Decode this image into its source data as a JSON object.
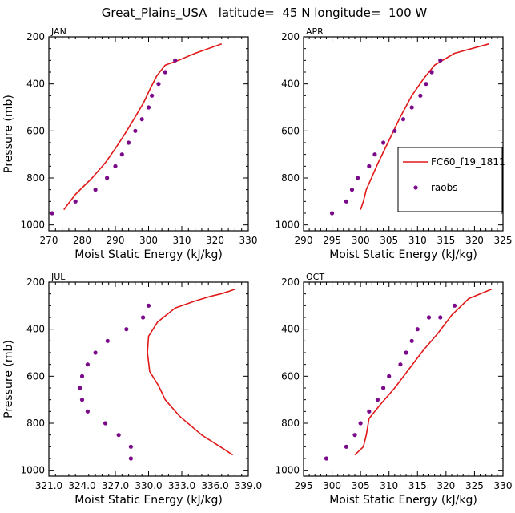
{
  "figure_title": "Great_Plains_USA   latitude=  45 N longitude=  100 W",
  "colors": {
    "model": "#e01818",
    "obs": "#7a0a8a",
    "axis": "#000000"
  },
  "legend": {
    "model_label": "FC60_f19_1811",
    "obs_label": "raobs"
  },
  "chart_data": [
    {
      "type": "line",
      "panel": "JAN",
      "xlabel": "Moist Static Energy (kJ/kg)",
      "ylabel": "Pressure (mb)",
      "xlim": [
        270,
        330
      ],
      "ylim": [
        1025,
        200
      ],
      "xticks": [
        270,
        280,
        290,
        300,
        310,
        320,
        330
      ],
      "xtick_labels": [
        "270",
        "280",
        "290",
        "300",
        "310",
        "320",
        "330"
      ],
      "yticks": [
        200,
        400,
        600,
        800,
        1000
      ],
      "ytick_labels": [
        "200",
        "400",
        "600",
        "800",
        "1000"
      ],
      "series": [
        {
          "name": "FC60_f19_1811",
          "kind": "line",
          "x": [
            274.5,
            278,
            283,
            287,
            290,
            293,
            296,
            298.5,
            300.5,
            302.5,
            305,
            307,
            309,
            314,
            322
          ],
          "y": [
            935,
            870,
            800,
            735,
            675,
            610,
            540,
            480,
            420,
            365,
            320,
            310,
            300,
            270,
            230
          ]
        },
        {
          "name": "raobs",
          "kind": "scatter",
          "x": [
            271,
            278,
            284,
            287.5,
            290,
            292,
            294,
            296,
            298,
            300,
            301,
            303,
            305,
            308
          ],
          "y": [
            950,
            900,
            850,
            800,
            750,
            700,
            650,
            600,
            550,
            500,
            450,
            400,
            350,
            300
          ]
        }
      ]
    },
    {
      "type": "line",
      "panel": "APR",
      "xlabel": "Moist Static Energy (kJ/kg)",
      "ylabel": "Pressure (mb)",
      "xlim": [
        290,
        325
      ],
      "ylim": [
        1025,
        200
      ],
      "xticks": [
        290,
        295,
        300,
        305,
        310,
        315,
        320,
        325
      ],
      "xtick_labels": [
        "290",
        "295",
        "300",
        "305",
        "310",
        "315",
        "320",
        "325"
      ],
      "yticks": [
        200,
        400,
        600,
        800,
        1000
      ],
      "ytick_labels": [
        "200",
        "400",
        "600",
        "800",
        "1000"
      ],
      "series": [
        {
          "name": "FC60_f19_1811",
          "kind": "line",
          "x": [
            300,
            300.5,
            301,
            303,
            305,
            307,
            309,
            311,
            313,
            316.5,
            322.5
          ],
          "y": [
            935,
            900,
            850,
            740,
            640,
            540,
            450,
            380,
            320,
            270,
            230
          ]
        },
        {
          "name": "raobs",
          "kind": "scatter",
          "x": [
            295,
            297.5,
            298.5,
            299.5,
            301.5,
            302.5,
            304,
            306,
            307.5,
            309,
            310.5,
            311.5,
            312.5,
            314
          ],
          "y": [
            950,
            900,
            850,
            800,
            750,
            700,
            650,
            600,
            550,
            500,
            450,
            400,
            350,
            300
          ]
        }
      ]
    },
    {
      "type": "line",
      "panel": "JUL",
      "xlabel": "Moist Static Energy (kJ/kg)",
      "ylabel": "Pressure (mb)",
      "xlim": [
        321,
        339
      ],
      "ylim": [
        1025,
        200
      ],
      "xticks": [
        321,
        324,
        327,
        330,
        333,
        336,
        339
      ],
      "xtick_labels": [
        "321.0",
        "324.0",
        "327.0",
        "330.0",
        "333.0",
        "336.0",
        "339.0"
      ],
      "yticks": [
        200,
        400,
        600,
        800,
        1000
      ],
      "ytick_labels": [
        "200",
        "400",
        "600",
        "800",
        "1000"
      ],
      "series": [
        {
          "name": "FC60_f19_1811",
          "kind": "line",
          "x": [
            337.6,
            336.8,
            334.8,
            332.8,
            331.5,
            330.9,
            330.1,
            329.9,
            330,
            330.8,
            332.4,
            334.2,
            335.6,
            336.5,
            337.2,
            337.8
          ],
          "y": [
            935,
            910,
            850,
            770,
            700,
            640,
            580,
            500,
            430,
            370,
            310,
            280,
            260,
            250,
            240,
            230
          ]
        },
        {
          "name": "raobs",
          "kind": "scatter",
          "x": [
            328.4,
            328.4,
            327.3,
            326.1,
            324.5,
            324,
            323.8,
            324,
            324.5,
            325.2,
            326.3,
            328,
            329.5,
            330
          ],
          "y": [
            950,
            900,
            850,
            800,
            750,
            700,
            650,
            600,
            550,
            500,
            450,
            400,
            350,
            300
          ]
        }
      ]
    },
    {
      "type": "line",
      "panel": "OCT",
      "xlabel": "Moist Static Energy (kJ/kg)",
      "ylabel": "Pressure (mb)",
      "xlim": [
        295,
        330
      ],
      "ylim": [
        1025,
        200
      ],
      "xticks": [
        295,
        300,
        305,
        310,
        315,
        320,
        325,
        330
      ],
      "xtick_labels": [
        "295",
        "300",
        "305",
        "310",
        "315",
        "320",
        "325",
        "330"
      ],
      "yticks": [
        200,
        400,
        600,
        800,
        1000
      ],
      "ytick_labels": [
        "200",
        "400",
        "600",
        "800",
        "1000"
      ],
      "series": [
        {
          "name": "FC60_f19_1811",
          "kind": "line",
          "x": [
            304,
            305.5,
            306,
            306.5,
            308.5,
            311,
            313.5,
            316,
            318.5,
            321,
            324,
            328
          ],
          "y": [
            935,
            900,
            850,
            780,
            720,
            650,
            570,
            490,
            420,
            340,
            270,
            230
          ]
        },
        {
          "name": "raobs",
          "kind": "scatter",
          "x": [
            299,
            302.5,
            304,
            305,
            306.5,
            308,
            309,
            310,
            312,
            313,
            314,
            315,
            317,
            319,
            321.5
          ],
          "y": [
            950,
            900,
            850,
            800,
            750,
            700,
            650,
            600,
            550,
            500,
            450,
            400,
            350,
            350,
            300
          ]
        }
      ]
    }
  ]
}
